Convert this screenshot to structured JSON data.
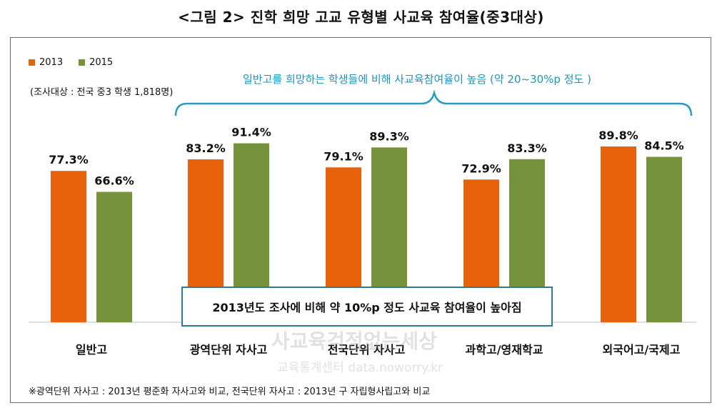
{
  "figure_title": "<그림 2> 진학 희망 고교 유형별 사교육 참여율(중3대상)",
  "legend": [
    {
      "name": "2013",
      "color": "#e8620c"
    },
    {
      "name": "2015",
      "color": "#76933c"
    }
  ],
  "subject_note": "(조사대상 : 전국 중3 학생 1,818명)",
  "annotation_top": "일반고를 희망하는 학생들에 비해 사교육참여율이 높음 (약 20~30%p 정도 )",
  "annotation_box": "2013년도 조사에 비해 약 10%p 정도 사교육 참여율이 높아짐",
  "watermark": "사교육걱정없는세상",
  "watermark_sub": "교육통계센터 data.noworry.kr",
  "footnote": "※광역단위 자사고 : 2013년 평준화 자사고와 비교, 전국단위 자사고 : 2013년 구 자립형사립고와 비교",
  "chart_data": {
    "type": "bar",
    "title": "<그림 2> 진학 희망 고교 유형별 사교육 참여율(중3대상)",
    "categories": [
      "일반고",
      "광역단위 자사고",
      "전국단위 자사고",
      "과학고/영재학교",
      "외국어고/국제고"
    ],
    "series": [
      {
        "name": "2013",
        "color": "#e8620c",
        "values": [
          77.3,
          83.2,
          79.1,
          72.9,
          89.8
        ],
        "labels": [
          "77.3%",
          "83.2%",
          "79.1%",
          "72.9%",
          "89.8%"
        ]
      },
      {
        "name": "2015",
        "color": "#76933c",
        "values": [
          66.6,
          91.4,
          89.3,
          83.3,
          84.5
        ],
        "labels": [
          "66.6%",
          "91.4%",
          "89.3%",
          "83.3%",
          "84.5%"
        ]
      }
    ],
    "ylim": [
      0,
      100
    ],
    "grid": false,
    "legend_position": "top-left"
  }
}
